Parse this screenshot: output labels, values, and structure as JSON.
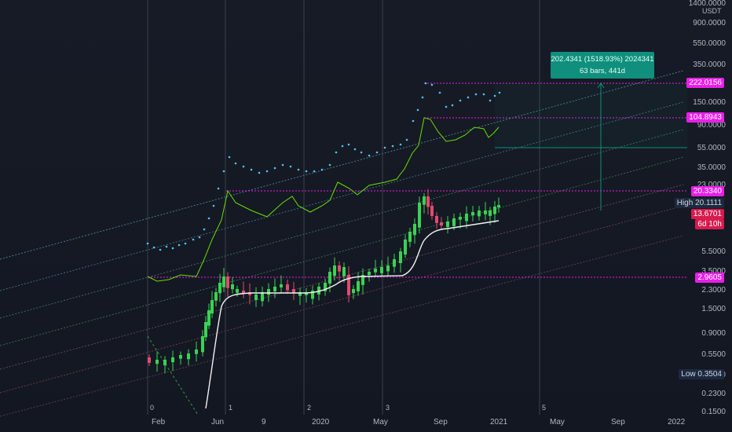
{
  "chart": {
    "unit": "USDT",
    "price_scale": [
      "1400.0000",
      "900.0000",
      "550.0000",
      "350.0000",
      "150.0000",
      "90.0000",
      "55.0000",
      "35.0000",
      "23.0000",
      "5.5000",
      "3.5000",
      "2.3000",
      "1.5000",
      "0.9000",
      "0.5500",
      "0.3500",
      "0.2300",
      "0.1500"
    ],
    "time_scale": [
      "Feb",
      "Jun",
      "9",
      "2020",
      "May",
      "Sep",
      "2021",
      "May",
      "Sep",
      "2022"
    ],
    "cycle_labels": [
      "0",
      "1",
      "2",
      "3",
      "5"
    ],
    "measure": {
      "line1": "202.4341 (1518.93%) 2024341",
      "line2": "63 bars, 441d"
    },
    "level_tags": {
      "l222": "222.0156",
      "l104": "104.8943",
      "l20": "20.3340",
      "l2": "2.9605"
    },
    "high": {
      "label": "High",
      "value": "20.1111"
    },
    "last_price": "13.6701",
    "countdown": "6d 10h",
    "low": {
      "label": "Low",
      "value": "0.3504"
    },
    "colors": {
      "up_candle": "#39d353",
      "down_candle": "#e24b6c",
      "dots_cyan": "#4fc3f7",
      "step_green": "#66e000",
      "magenta": "#e91fe9",
      "teal": "#0f8f7c"
    }
  }
}
